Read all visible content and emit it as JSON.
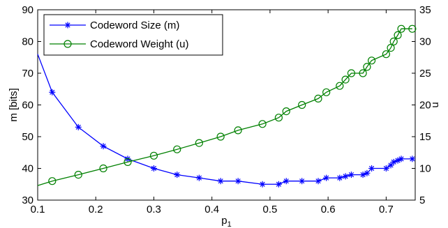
{
  "chart_data": {
    "type": "line",
    "xlabel": "p",
    "xlabel_sub": "1",
    "ylabel_left": "m [bits]",
    "ylabel_right": "u",
    "xlim": [
      0.1,
      0.75
    ],
    "ylim_left": [
      30,
      90
    ],
    "ylim_right": [
      5,
      35
    ],
    "xticks": [
      "0.1",
      "0.2",
      "0.3",
      "0.4",
      "0.5",
      "0.6",
      "0.7"
    ],
    "xtick_values": [
      0.1,
      0.2,
      0.3,
      0.4,
      0.5,
      0.6,
      0.7
    ],
    "yticks_left": [
      "30",
      "40",
      "50",
      "60",
      "70",
      "80",
      "90"
    ],
    "ytick_values_left": [
      30,
      40,
      50,
      60,
      70,
      80,
      90
    ],
    "yticks_right": [
      "5",
      "10",
      "15",
      "20",
      "25",
      "30",
      "35"
    ],
    "ytick_values_right": [
      5,
      10,
      15,
      20,
      25,
      30,
      35
    ],
    "legend_position": "top-left",
    "series": [
      {
        "name": "Codeword Size (m)",
        "axis": "left",
        "color": "#0000ff",
        "marker": "asterisk",
        "x": [
          0.1,
          0.125,
          0.17,
          0.213,
          0.255,
          0.3,
          0.34,
          0.378,
          0.415,
          0.445,
          0.487,
          0.515,
          0.528,
          0.555,
          0.583,
          0.597,
          0.62,
          0.63,
          0.64,
          0.66,
          0.667,
          0.675,
          0.7,
          0.708,
          0.713,
          0.72,
          0.726,
          0.745
        ],
        "values": [
          76,
          64,
          53,
          47,
          43,
          40,
          38,
          37,
          36,
          36,
          35,
          35,
          36,
          36,
          36,
          37,
          37,
          37.5,
          38,
          38,
          38.5,
          40,
          40,
          41,
          42,
          42.5,
          43,
          43
        ]
      },
      {
        "name": "Codeword Weight (u)",
        "axis": "right",
        "color": "#008000",
        "marker": "circle",
        "x": [
          0.1,
          0.125,
          0.17,
          0.213,
          0.255,
          0.3,
          0.34,
          0.378,
          0.415,
          0.445,
          0.487,
          0.515,
          0.528,
          0.555,
          0.583,
          0.597,
          0.62,
          0.63,
          0.64,
          0.66,
          0.667,
          0.675,
          0.7,
          0.708,
          0.713,
          0.72,
          0.726,
          0.745
        ],
        "values": [
          7.3,
          8,
          9,
          10,
          11,
          12,
          13,
          14,
          15,
          16,
          17,
          18,
          19,
          20,
          21,
          22,
          23,
          24,
          25,
          25,
          26,
          27,
          28,
          29,
          30,
          31,
          32,
          32
        ]
      }
    ]
  }
}
